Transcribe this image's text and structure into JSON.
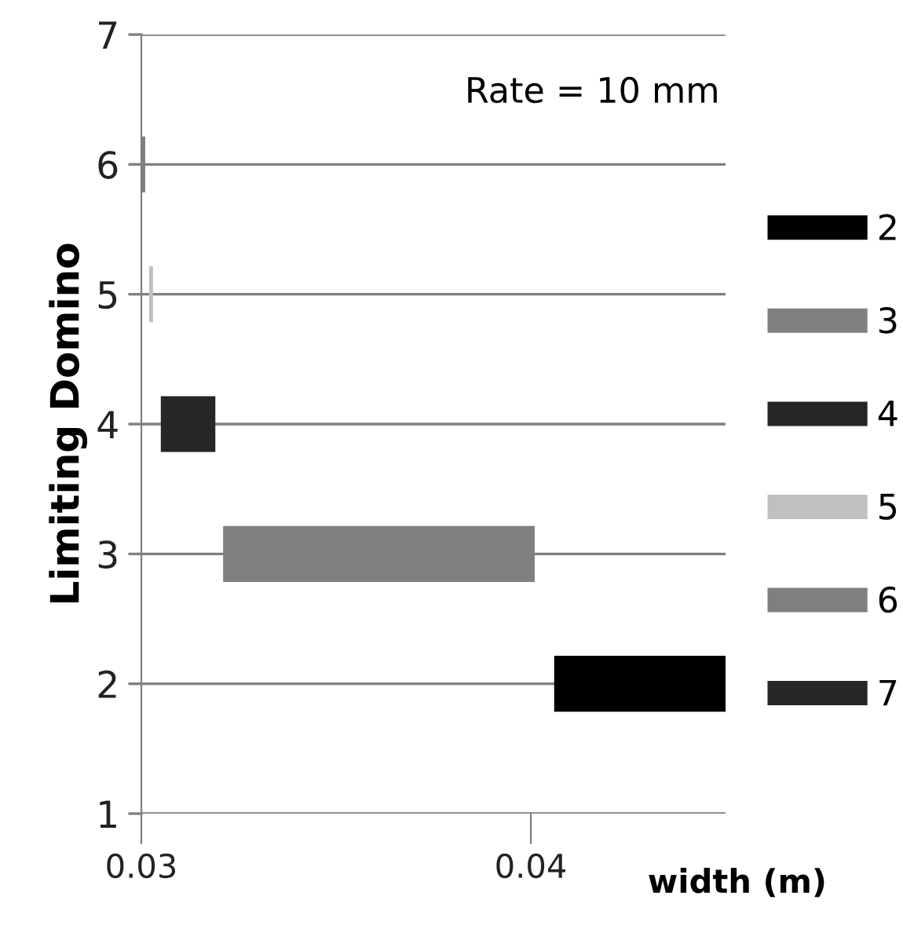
{
  "chart_data": {
    "type": "bar",
    "orientation": "horizontal",
    "ylabel": "Limiting Domino",
    "xlabel": "width (m)",
    "annotations": [
      "Rate = 10 mm"
    ],
    "series": [
      {
        "name": "2",
        "color": "#000000",
        "x": [
          2
        ],
        "base": [
          0.0406
        ],
        "values": [
          0.0044
        ]
      },
      {
        "name": "3",
        "color": "#808080",
        "x": [
          3
        ],
        "base": [
          0.0321
        ],
        "values": [
          0.008
        ]
      },
      {
        "name": "4",
        "color": "#262626",
        "x": [
          4
        ],
        "base": [
          0.0305
        ],
        "values": [
          0.0014
        ]
      },
      {
        "name": "5",
        "color": "#c0c0c0",
        "x": [
          5
        ],
        "base": [
          0.0302
        ],
        "values": [
          0.0001
        ]
      },
      {
        "name": "6",
        "color": "#7f7f7f",
        "x": [
          6
        ],
        "base": [
          0.03
        ],
        "values": [
          0.0001
        ]
      },
      {
        "name": "7",
        "color": "#262626",
        "base": [
          null
        ],
        "values": [
          null
        ]
      }
    ],
    "xlim": [
      0.03,
      0.045
    ],
    "xticks": [
      0.03,
      0.04
    ],
    "ylim": [
      1,
      7
    ],
    "yticks": [
      1,
      2,
      3,
      4,
      5,
      6,
      7
    ],
    "grid": "y",
    "legend": "right"
  }
}
